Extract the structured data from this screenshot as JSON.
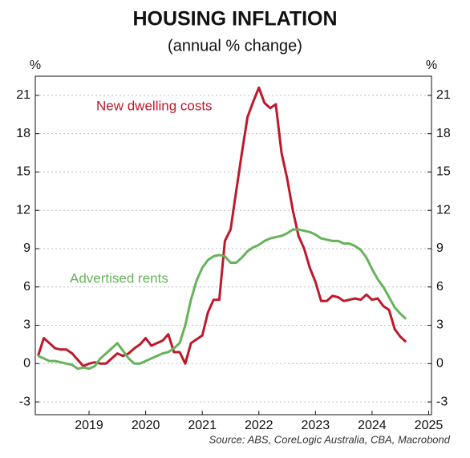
{
  "chart_data": {
    "type": "line",
    "title": "HOUSING INFLATION",
    "subtitle": "(annual % change)",
    "y_unit_left": "%",
    "y_unit_right": "%",
    "source": "Source: ABS, CoreLogic Australia, CBA, Macrobond",
    "x": [
      2018.1,
      2018.2,
      2018.3,
      2018.4,
      2018.5,
      2018.6,
      2018.7,
      2018.8,
      2018.9,
      2019.0,
      2019.1,
      2019.2,
      2019.3,
      2019.4,
      2019.5,
      2019.6,
      2019.7,
      2019.8,
      2019.9,
      2020.0,
      2020.1,
      2020.2,
      2020.3,
      2020.4,
      2020.5,
      2020.6,
      2020.7,
      2020.8,
      2020.9,
      2021.0,
      2021.1,
      2021.2,
      2021.3,
      2021.4,
      2021.5,
      2021.6,
      2021.7,
      2021.8,
      2021.9,
      2022.0,
      2022.1,
      2022.2,
      2022.3,
      2022.4,
      2022.5,
      2022.6,
      2022.7,
      2022.8,
      2022.9,
      2023.0,
      2023.1,
      2023.2,
      2023.3,
      2023.4,
      2023.5,
      2023.6,
      2023.7,
      2023.8,
      2023.9,
      2024.0,
      2024.1,
      2024.2,
      2024.3,
      2024.4,
      2024.5,
      2024.6
    ],
    "series": [
      {
        "name": "New dwelling costs",
        "color": "#c0182b",
        "values": [
          0.6,
          2.0,
          1.6,
          1.2,
          1.1,
          1.1,
          0.8,
          0.3,
          -0.2,
          0.0,
          0.1,
          0.0,
          0.0,
          0.4,
          0.8,
          0.6,
          0.8,
          1.2,
          1.5,
          2.0,
          1.4,
          1.6,
          1.8,
          2.3,
          0.9,
          0.9,
          0.0,
          1.6,
          1.9,
          2.2,
          4.0,
          5.0,
          5.0,
          9.6,
          10.5,
          13.5,
          16.5,
          19.3,
          20.5,
          21.6,
          20.4,
          20.0,
          20.3,
          16.5,
          14.5,
          12.0,
          10.0,
          9.0,
          7.5,
          6.4,
          4.9,
          4.9,
          5.3,
          5.2,
          4.9,
          5.0,
          5.1,
          5.0,
          5.4,
          5.0,
          5.1,
          4.5,
          4.2,
          2.7,
          2.1,
          1.7
        ]
      },
      {
        "name": "Advertised rents",
        "color": "#66b35a",
        "values": [
          0.6,
          0.4,
          0.2,
          0.2,
          0.1,
          0.0,
          -0.1,
          -0.4,
          -0.3,
          -0.4,
          -0.2,
          0.4,
          0.8,
          1.2,
          1.6,
          1.0,
          0.4,
          0.0,
          0.0,
          0.2,
          0.4,
          0.6,
          0.8,
          0.9,
          1.2,
          1.6,
          3.0,
          5.0,
          6.5,
          7.5,
          8.1,
          8.4,
          8.5,
          8.4,
          7.9,
          7.9,
          8.3,
          8.8,
          9.1,
          9.3,
          9.6,
          9.8,
          9.9,
          10.0,
          10.2,
          10.5,
          10.5,
          10.4,
          10.3,
          10.1,
          9.8,
          9.7,
          9.6,
          9.6,
          9.4,
          9.4,
          9.2,
          8.9,
          8.3,
          7.4,
          6.6,
          6.0,
          5.2,
          4.4,
          3.9,
          3.5
        ]
      }
    ],
    "xlim": [
      2018.05,
      2025.05
    ],
    "xticks": [
      2019,
      2020,
      2021,
      2022,
      2023,
      2024,
      2025
    ],
    "ylim": [
      -4,
      22.5
    ],
    "yticks": [
      -3,
      0,
      3,
      6,
      9,
      12,
      15,
      18,
      21
    ],
    "grid": true
  }
}
